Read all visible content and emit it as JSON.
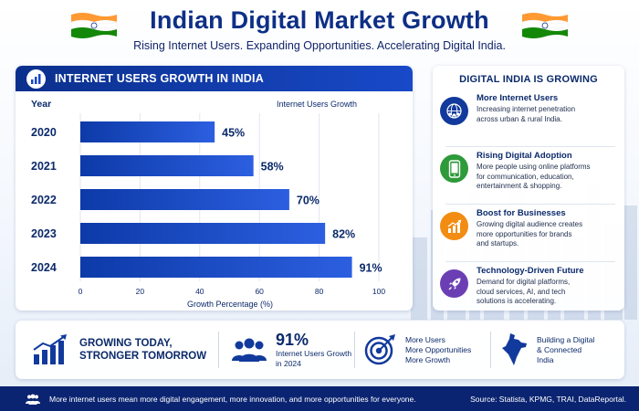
{
  "header": {
    "title": "Indian Digital Market Growth",
    "subtitle": "Rising Internet Users. Expanding Opportunities. Accelerating Digital India.",
    "flag_colors": {
      "saffron": "#ff9933",
      "white": "#ffffff",
      "green": "#138808",
      "chakra": "#0b2a8a"
    }
  },
  "chart_card": {
    "heading": "INTERNET USERS GROWTH IN INDIA",
    "icon": "bar-chart-icon"
  },
  "chart_data": {
    "type": "bar",
    "orientation": "horizontal",
    "title": "INTERNET USERS GROWTH IN INDIA",
    "category_header": "Year",
    "series_header": "Internet Users Growth",
    "categories": [
      "2020",
      "2021",
      "2022",
      "2023",
      "2024"
    ],
    "values": [
      45,
      58,
      70,
      82,
      91
    ],
    "value_labels": [
      "45%",
      "58%",
      "70%",
      "82%",
      "91%"
    ],
    "xlabel": "Growth Percentage (%)",
    "xlim": [
      0,
      100
    ],
    "xticks": [
      "0",
      "20",
      "40",
      "60",
      "80",
      "100"
    ],
    "bar_color": "#1746c8",
    "grid": true
  },
  "right_card": {
    "title": "DIGITAL INDIA IS GROWING",
    "features": [
      {
        "title": "More Internet Users",
        "desc_lines": [
          "Increasing internet penetration",
          "across urban & rural India."
        ],
        "icon": "users-globe-icon",
        "color": "#123a9c"
      },
      {
        "title": "Rising Digital Adoption",
        "desc_lines": [
          "More people using online platforms",
          "for communication, education,",
          "entertainment & shopping."
        ],
        "icon": "smartphone-icon",
        "color": "#2e9a3a"
      },
      {
        "title": "Boost for Businesses",
        "desc_lines": [
          "Growing digital audience creates",
          "more opportunities for brands",
          "and startups."
        ],
        "icon": "growth-arrow-icon",
        "color": "#f28c12"
      },
      {
        "title": "Technology-Driven Future",
        "desc_lines": [
          "Demand for digital platforms,",
          "cloud services, AI, and tech",
          "solutions is accelerating."
        ],
        "icon": "rocket-icon",
        "color": "#6b3fb3"
      }
    ]
  },
  "bottom": {
    "growing_lines": [
      "GROWING TODAY,",
      "STRONGER TOMORROW"
    ],
    "stat_value": "91%",
    "stat_desc_lines": [
      "Internet Users Growth",
      "in 2024"
    ],
    "target_lines": [
      "More Users",
      "More Opportunities",
      "More Growth"
    ],
    "india_lines": [
      "Building a Digital",
      "& Connected",
      "India"
    ]
  },
  "footer": {
    "message": "More internet users mean more digital engagement, more innovation, and more opportunities for everyone.",
    "source": "Source: Statista, KPMG, TRAI, DataReportal."
  }
}
